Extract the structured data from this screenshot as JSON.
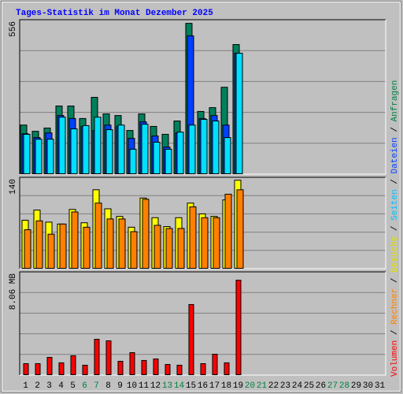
{
  "title": "Tages-Statistik im Monat Dezember 2025",
  "legend_separator": " / ",
  "chart_data": [
    {
      "type": "bar",
      "ylim": [
        0,
        568
      ],
      "yticks": [
        556
      ],
      "series": [
        {
          "name": "Anfragen",
          "color": "#00805c",
          "text_color": "#008040",
          "values": [
            182,
            159,
            171,
            252,
            252,
            206,
            284,
            223,
            217,
            162,
            223,
            177,
            148,
            197,
            556,
            232,
            246,
            321,
            478,
            null,
            null,
            null,
            null,
            null,
            null,
            null,
            null,
            null,
            null,
            null,
            null
          ]
        },
        {
          "name": "Dateien",
          "color": "#0040ff",
          "text_color": "#0040ff",
          "values": [
            150,
            136,
            153,
            217,
            206,
            177,
            162,
            182,
            177,
            133,
            194,
            142,
            101,
            153,
            510,
            206,
            217,
            182,
            446,
            null,
            null,
            null,
            null,
            null,
            null,
            null,
            null,
            null,
            null,
            null,
            null
          ]
        },
        {
          "name": "Seiten",
          "color": "#00e0ff",
          "text_color": "#00c0ff",
          "values": [
            148,
            130,
            130,
            211,
            168,
            180,
            211,
            165,
            182,
            93,
            185,
            119,
            93,
            156,
            182,
            203,
            197,
            136,
            446,
            null,
            null,
            null,
            null,
            null,
            null,
            null,
            null,
            null,
            null,
            null,
            null
          ]
        }
      ]
    },
    {
      "type": "bar",
      "ylim": [
        0,
        144
      ],
      "yticks": [
        140
      ],
      "series": [
        {
          "name": "Besuche",
          "color": "#ffff00",
          "text_color": "#e0e000",
          "values": [
            77,
            93,
            74,
            71,
            94,
            73,
            125,
            95,
            83,
            66,
            112,
            81,
            67,
            81,
            104,
            87,
            83,
            109,
            140,
            null,
            null,
            null,
            null,
            null,
            null,
            null,
            null,
            null,
            null,
            null,
            null
          ]
        },
        {
          "name": "Rechner",
          "color": "#ff8000",
          "text_color": "#ff8000",
          "values": [
            62,
            76,
            55,
            71,
            90,
            66,
            104,
            79,
            79,
            59,
            110,
            69,
            64,
            64,
            98,
            81,
            81,
            118,
            125,
            null,
            null,
            null,
            null,
            null,
            null,
            null,
            null,
            null,
            null,
            null,
            null
          ]
        }
      ]
    },
    {
      "type": "bar",
      "ylim": [
        0,
        8.73
      ],
      "yticks": [
        {
          "value": 8.06,
          "label": "8.06 MB"
        }
      ],
      "categories": [
        "1",
        "2",
        "3",
        "4",
        "5",
        "6",
        "7",
        "8",
        "9",
        "10",
        "11",
        "12",
        "13",
        "14",
        "15",
        "16",
        "17",
        "18",
        "19",
        "20",
        "21",
        "22",
        "23",
        "24",
        "25",
        "26",
        "27",
        "28",
        "29",
        "30",
        "31"
      ],
      "weekend": [
        5,
        6,
        12,
        13,
        19,
        20,
        26,
        27
      ],
      "weekend_color": "#008040",
      "category_color": "#000000",
      "series": [
        {
          "name": "Volumen",
          "color": "#ff0000",
          "text_color": "#ff0000",
          "values": [
            1.0,
            1.0,
            1.53,
            1.07,
            1.67,
            0.87,
            3.06,
            2.93,
            1.2,
            1.93,
            1.27,
            1.4,
            0.93,
            0.87,
            6.0,
            1.0,
            1.8,
            1.07,
            8.06,
            null,
            null,
            null,
            null,
            null,
            null,
            null,
            null,
            null,
            null,
            null,
            null
          ]
        }
      ]
    }
  ]
}
